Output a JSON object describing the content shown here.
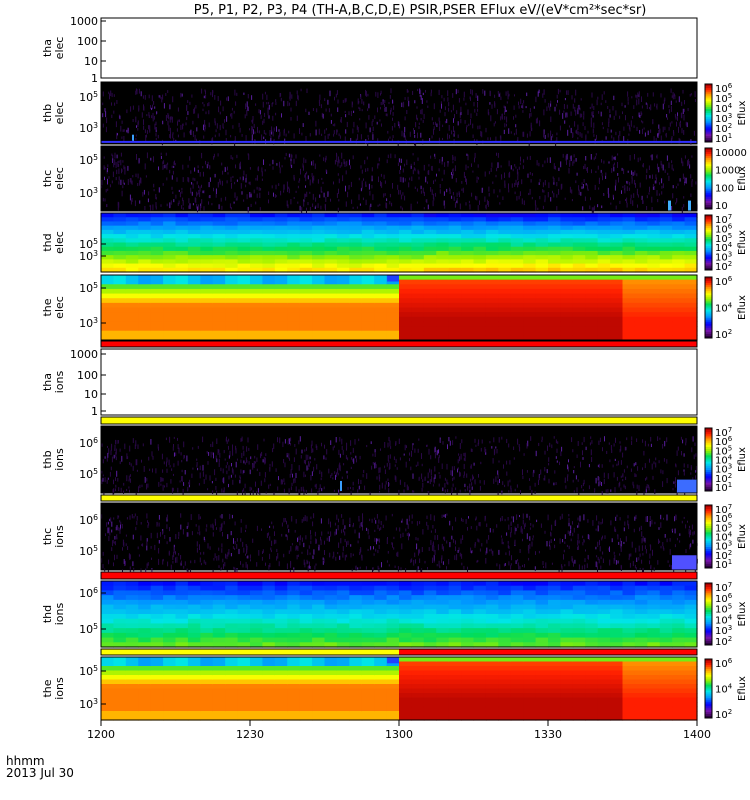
{
  "title": "P5, P1, P2, P3, P4 (TH-A,B,C,D,E) PSIR,PSER EFlux eV/(eV*cm²*sec*sr)",
  "footer": {
    "line1": "hhmm",
    "line2": "2013 Jul 30"
  },
  "chart_data": {
    "type": "heatmap",
    "x_ticks": [
      "1200",
      "1230",
      "1300",
      "1330",
      "1400"
    ],
    "x_range": [
      "12:00",
      "14:00"
    ],
    "panels": [
      {
        "id": "tha-elec",
        "ylabel": [
          "tha",
          "elec"
        ],
        "empty": true,
        "y_ticks": [
          "1000",
          "100",
          "10",
          "1"
        ],
        "ylim": [
          1,
          2000
        ],
        "yscale": "log",
        "colorbar": null,
        "quality_bar": null
      },
      {
        "id": "thb-elec",
        "ylabel": [
          "thb",
          "elec"
        ],
        "pattern": "noise-elec",
        "y_ticks": [
          "10^5",
          "10^3"
        ],
        "colorbar": {
          "label": "Eflux",
          "ticks": [
            "10^6",
            "10^5",
            "10^4",
            "10^3",
            "10^2",
            "10^1"
          ]
        },
        "quality_bar": null
      },
      {
        "id": "thc-elec",
        "ylabel": [
          "thc",
          "elec"
        ],
        "pattern": "noise-elec-tail",
        "y_ticks": [
          "10^5",
          "10^3"
        ],
        "colorbar": {
          "label": "Eflux",
          "ticks": [
            "10000",
            "1000",
            "100",
            "10"
          ]
        },
        "quality_bar": null
      },
      {
        "id": "thd-elec",
        "ylabel": [
          "thd",
          "elec"
        ],
        "pattern": "spectrum-elec",
        "y_ticks": [
          "10^5",
          "10^3"
        ],
        "colorbar": {
          "label": "Eflux",
          "ticks": [
            "10^7",
            "10^6",
            "10^5",
            "10^4",
            "10^3",
            "10^2"
          ]
        },
        "quality_bar": null
      },
      {
        "id": "the-elec",
        "ylabel": [
          "the",
          "elec"
        ],
        "pattern": "hot-elec",
        "y_ticks": [
          "10^5",
          "10^3"
        ],
        "colorbar": {
          "label": "Eflux",
          "ticks": [
            "10^6",
            "10^4",
            "10^2"
          ]
        },
        "quality_bar": [
          {
            "from": 0,
            "to": 1,
            "color": "#ff0000"
          }
        ]
      },
      {
        "id": "tha-ions",
        "ylabel": [
          "tha",
          "ions"
        ],
        "empty": true,
        "y_ticks": [
          "1000",
          "100",
          "10",
          "1"
        ],
        "ylim": [
          1,
          2000
        ],
        "yscale": "log",
        "colorbar": null,
        "quality_bar": [
          {
            "from": 0,
            "to": 1,
            "color": "#ffff00"
          }
        ]
      },
      {
        "id": "thb-ions",
        "ylabel": [
          "thb",
          "ions"
        ],
        "pattern": "noise-ions",
        "y_ticks": [
          "10^6",
          "10^5"
        ],
        "colorbar": {
          "label": "Eflux",
          "ticks": [
            "10^7",
            "10^6",
            "10^5",
            "10^4",
            "10^3",
            "10^2",
            "10^1"
          ]
        },
        "quality_bar": [
          {
            "from": 0,
            "to": 1,
            "color": "#ffff00"
          }
        ]
      },
      {
        "id": "thc-ions",
        "ylabel": [
          "thc",
          "ions"
        ],
        "pattern": "noise-ions-tail",
        "y_ticks": [
          "10^6",
          "10^5"
        ],
        "colorbar": {
          "label": "Eflux",
          "ticks": [
            "10^7",
            "10^6",
            "10^5",
            "10^4",
            "10^3",
            "10^2",
            "10^1"
          ]
        },
        "quality_bar": [
          {
            "from": 0,
            "to": 1,
            "color": "#ff0000"
          }
        ]
      },
      {
        "id": "thd-ions",
        "ylabel": [
          "thd",
          "ions"
        ],
        "pattern": "spectrum-ions",
        "y_ticks": [
          "10^6",
          "10^5"
        ],
        "colorbar": {
          "label": "Eflux",
          "ticks": [
            "10^7",
            "10^6",
            "10^5",
            "10^4",
            "10^3",
            "10^2"
          ]
        },
        "quality_bar": [
          {
            "from": 0,
            "to": 0.5,
            "color": "#ffff00"
          },
          {
            "from": 0.5,
            "to": 1,
            "color": "#ff0000"
          }
        ]
      },
      {
        "id": "the-ions",
        "ylabel": [
          "the",
          "ions"
        ],
        "pattern": "hot-ions",
        "y_ticks": [
          "10^5",
          "10^3"
        ],
        "colorbar": {
          "label": "Eflux",
          "ticks": [
            "10^6",
            "10^4",
            "10^2"
          ]
        },
        "quality_bar": null
      }
    ]
  }
}
